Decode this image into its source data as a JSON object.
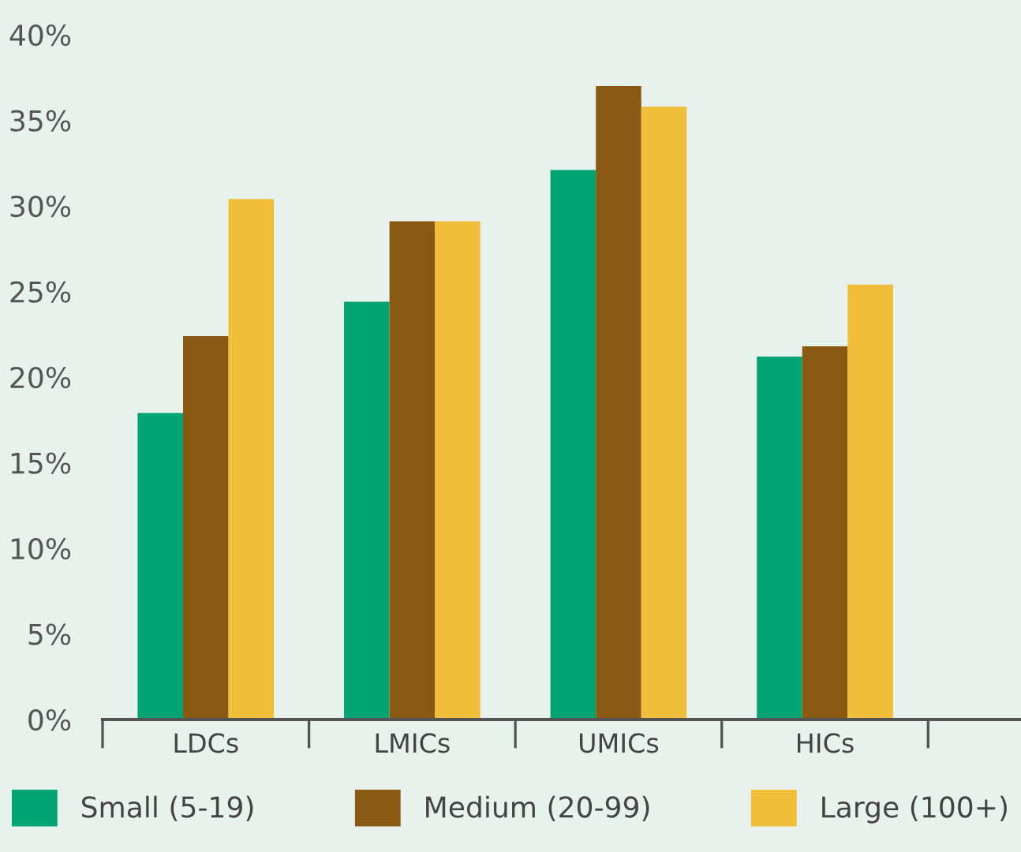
{
  "chart_data": {
    "type": "bar",
    "categories": [
      "LDCs",
      "LMICs",
      "UMICs",
      "HICs"
    ],
    "series": [
      {
        "name": "Small (5-19)",
        "color": "#00a472",
        "values": [
          17.9,
          24.4,
          32.1,
          21.2
        ]
      },
      {
        "name": "Medium (20-99)",
        "color": "#8a5a15",
        "values": [
          22.4,
          29.1,
          37.0,
          21.8
        ]
      },
      {
        "name": "Large (100+)",
        "color": "#f0be38",
        "values": [
          30.4,
          29.1,
          35.8,
          25.4
        ]
      }
    ],
    "ylim": [
      0,
      40
    ],
    "yticks": [
      {
        "value": 0,
        "label": "0%"
      },
      {
        "value": 5,
        "label": "5%"
      },
      {
        "value": 10,
        "label": "10%"
      },
      {
        "value": 15,
        "label": "15%"
      },
      {
        "value": 20,
        "label": "20%"
      },
      {
        "value": 25,
        "label": "25%"
      },
      {
        "value": 30,
        "label": "30%"
      },
      {
        "value": 35,
        "label": "35%"
      },
      {
        "value": 40,
        "label": "40%"
      }
    ],
    "grid": false,
    "legend": "bottom"
  }
}
